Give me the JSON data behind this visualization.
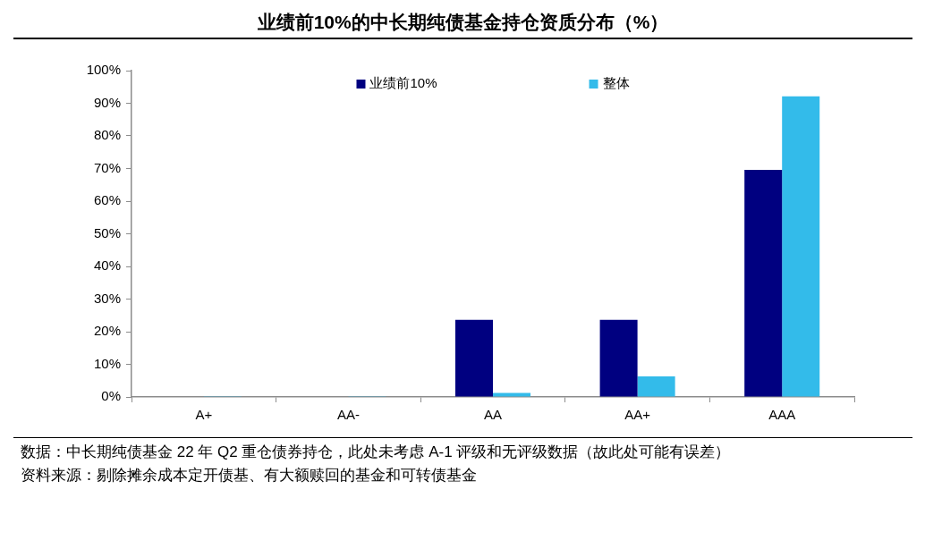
{
  "chart_data": {
    "type": "bar",
    "title": "业绩前10%的中长期纯债基金持仓资质分布（%）",
    "categories": [
      "A+",
      "AA-",
      "AA",
      "AA+",
      "AAA"
    ],
    "series": [
      {
        "name": "业绩前10%",
        "color": "#000080",
        "values": [
          0,
          0,
          23.6,
          23.6,
          69.6
        ]
      },
      {
        "name": "整体",
        "color": "#33bbea",
        "values": [
          0.2,
          0.2,
          1.2,
          6.3,
          92.1
        ]
      }
    ],
    "ylim": [
      0,
      100
    ],
    "yticks": [
      {
        "value": 0,
        "label": "0%"
      },
      {
        "value": 10,
        "label": "10%"
      },
      {
        "value": 20,
        "label": "20%"
      },
      {
        "value": 30,
        "label": "30%"
      },
      {
        "value": 40,
        "label": "40%"
      },
      {
        "value": 50,
        "label": "50%"
      },
      {
        "value": 60,
        "label": "60%"
      },
      {
        "value": 70,
        "label": "70%"
      },
      {
        "value": 80,
        "label": "80%"
      },
      {
        "value": 90,
        "label": "90%"
      },
      {
        "value": 100,
        "label": "100%"
      }
    ],
    "legend": "top",
    "annotations": [
      "数据：中长期纯债基金 22 年 Q2 重仓债券持仓，此处未考虑 A-1 评级和无评级数据（故此处可能有误差）",
      "资料来源：剔除摊余成本定开债基、有大额赎回的基金和可转债基金"
    ]
  }
}
